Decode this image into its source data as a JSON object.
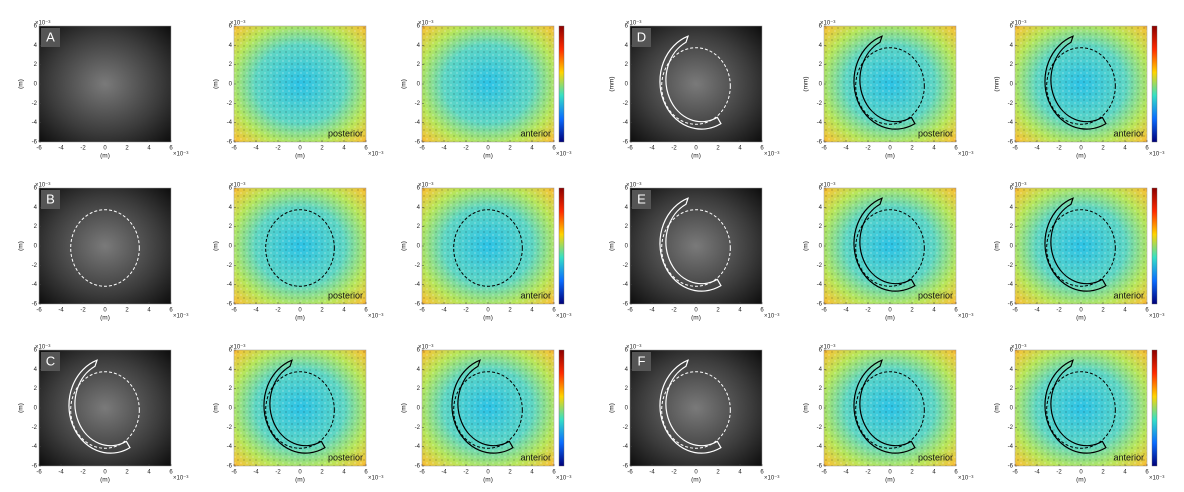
{
  "axes": {
    "xticks": [
      -6,
      -4,
      -2,
      0,
      2,
      4,
      6
    ],
    "yticks": [
      -6,
      -4,
      -2,
      0,
      2,
      4,
      6
    ],
    "exponent": "×10⁻³"
  },
  "panels": [
    {
      "label": "A",
      "xlabel": "(m)",
      "ylabel": "(m)"
    },
    {
      "xlabel": "(m)",
      "ylabel": "(m)",
      "caption": "posterior"
    },
    {
      "xlabel": "(m)",
      "ylabel": "(m)",
      "caption": "anterior"
    },
    {
      "label": "D",
      "xlabel": "(m)",
      "ylabel": "(mm)"
    },
    {
      "xlabel": "(m)",
      "ylabel": "(mm)",
      "caption": "posterior"
    },
    {
      "xlabel": "(m)",
      "ylabel": "(mm)",
      "caption": "anterior"
    },
    {
      "label": "B",
      "xlabel": "(m)",
      "ylabel": "(m)"
    },
    {
      "xlabel": "(m)",
      "ylabel": "(m)",
      "caption": "posterior"
    },
    {
      "xlabel": "(m)",
      "ylabel": "(m)",
      "caption": "anterior"
    },
    {
      "label": "E",
      "xlabel": "(m)",
      "ylabel": "(m)"
    },
    {
      "xlabel": "(m)",
      "ylabel": "(m)",
      "caption": "posterior"
    },
    {
      "xlabel": "(m)",
      "ylabel": "(m)",
      "caption": "anterior"
    },
    {
      "label": "C",
      "xlabel": "(m)",
      "ylabel": "(m)"
    },
    {
      "xlabel": "(m)",
      "ylabel": "(m)",
      "caption": "posterior"
    },
    {
      "xlabel": "(m)",
      "ylabel": "(m)",
      "caption": "anterior"
    },
    {
      "label": "F",
      "xlabel": "(m)",
      "ylabel": "(m)"
    },
    {
      "xlabel": "(m)",
      "ylabel": "(m)",
      "caption": "posterior"
    },
    {
      "xlabel": "(m)",
      "ylabel": "(m)",
      "caption": "anterior"
    }
  ]
}
